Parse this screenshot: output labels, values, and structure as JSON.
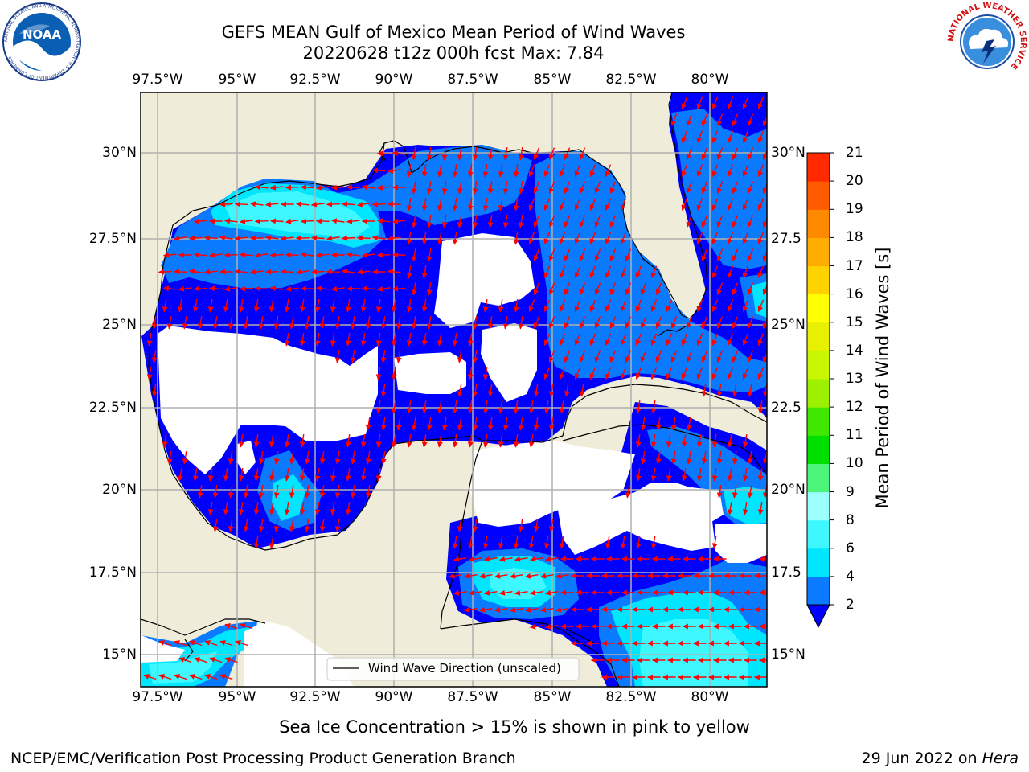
{
  "header": {
    "title_line1": "GEFS MEAN Gulf of Mexico Mean Period of Wind Waves",
    "title_line2": "20220628 t12z 000h fcst   Max: 7.84"
  },
  "logos": {
    "left": "NOAA",
    "left_ring": "NATIONAL OCEANIC AND ATMOSPHERIC ADMINISTRATION · U.S. DEPARTMENT OF COMMERCE",
    "right_ring": "NATIONAL WEATHER SERVICE"
  },
  "map": {
    "x_ticks": [
      "97.5°W",
      "95°W",
      "92.5°W",
      "90°W",
      "87.5°W",
      "85°W",
      "82.5°W",
      "80°W"
    ],
    "y_ticks_left": [
      "30°N",
      "27.5°N",
      "25°N",
      "22.5°N",
      "20°N",
      "17.5°N",
      "15°N"
    ],
    "y_ticks_right": [
      "30°N",
      "27.5",
      "25°N",
      "22.5",
      "20°N",
      "17.5",
      "15°N"
    ],
    "legend_label": "Wind Wave Direction (unscaled)",
    "colors": {
      "land": "#efedda",
      "ocean_none": "#ffffff",
      "level_blue": "#0000ff",
      "level_2": "#0a7bff",
      "level_4": "#00e6ff",
      "level_6": "#3ff8ff",
      "arrow": "#ff0000",
      "grid": "#b0b0b0"
    }
  },
  "colorbar": {
    "label": "Mean Period of Wind Waves [s]",
    "ticks": [
      "2",
      "4",
      "6",
      "8",
      "9",
      "10",
      "11",
      "12",
      "13",
      "14",
      "15",
      "16",
      "17",
      "18",
      "19",
      "20",
      "21"
    ],
    "colors": [
      "#0a7bff",
      "#00e6ff",
      "#3ff8ff",
      "#9cfffd",
      "#4cf57a",
      "#00e000",
      "#3fe800",
      "#9cf000",
      "#c8f500",
      "#e6f000",
      "#ffff00",
      "#ffd200",
      "#ffad00",
      "#ff8a00",
      "#ff5a00",
      "#ff2a00"
    ]
  },
  "footer": {
    "note": "Sea Ice Concentration > 15% is shown in pink to yellow",
    "left": "NCEP/EMC/Verification Post Processing Product Generation Branch",
    "date": "29 Jun 2022 on ",
    "host": "Hera"
  }
}
